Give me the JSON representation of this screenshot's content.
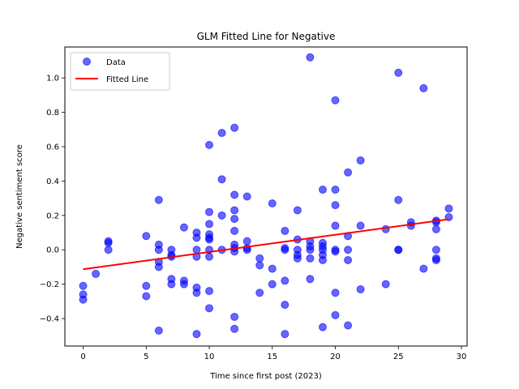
{
  "chart_data": {
    "type": "scatter",
    "title": "GLM Fitted Line for Negative",
    "xlabel": "Time since first post (2023)",
    "ylabel": "Negative sentiment score",
    "xlim": [
      -1.45,
      30.45
    ],
    "ylim": [
      -0.56,
      1.18
    ],
    "xticks": [
      0,
      5,
      10,
      15,
      20,
      25,
      30
    ],
    "yticks": [
      -0.4,
      -0.2,
      0.0,
      0.2,
      0.4,
      0.6,
      0.8,
      1.0
    ],
    "ytick_labels": [
      "−0.4",
      "−0.2",
      "0.0",
      "0.2",
      "0.4",
      "0.6",
      "0.8",
      "1.0"
    ],
    "grid": false,
    "legend_position": "top-left",
    "series": [
      {
        "name": "Data",
        "type": "scatter",
        "color": "#0000ff",
        "points": [
          [
            0,
            -0.21
          ],
          [
            0,
            -0.26
          ],
          [
            0,
            -0.29
          ],
          [
            1,
            -0.14
          ],
          [
            2,
            0.05
          ],
          [
            2,
            0.04
          ],
          [
            2,
            0.0
          ],
          [
            5,
            0.08
          ],
          [
            5,
            -0.21
          ],
          [
            5,
            -0.27
          ],
          [
            6,
            0.29
          ],
          [
            6,
            0.03
          ],
          [
            6,
            0.0
          ],
          [
            6,
            -0.07
          ],
          [
            6,
            -0.1
          ],
          [
            6,
            -0.47
          ],
          [
            7,
            0.0
          ],
          [
            7,
            -0.03
          ],
          [
            7,
            -0.04
          ],
          [
            7,
            -0.17
          ],
          [
            7,
            -0.2
          ],
          [
            8,
            0.13
          ],
          [
            8,
            -0.18
          ],
          [
            8,
            -0.2
          ],
          [
            9,
            0.1
          ],
          [
            9,
            0.07
          ],
          [
            9,
            0.0
          ],
          [
            9,
            -0.04
          ],
          [
            9,
            -0.22
          ],
          [
            9,
            -0.25
          ],
          [
            9,
            -0.49
          ],
          [
            10,
            0.61
          ],
          [
            10,
            0.22
          ],
          [
            10,
            0.15
          ],
          [
            10,
            0.09
          ],
          [
            10,
            0.07
          ],
          [
            10,
            0.06
          ],
          [
            10,
            0.0
          ],
          [
            10,
            -0.04
          ],
          [
            10,
            -0.24
          ],
          [
            10,
            -0.34
          ],
          [
            11,
            0.68
          ],
          [
            11,
            0.41
          ],
          [
            11,
            0.2
          ],
          [
            11,
            0.0
          ],
          [
            12,
            0.71
          ],
          [
            12,
            0.32
          ],
          [
            12,
            0.23
          ],
          [
            12,
            0.18
          ],
          [
            12,
            0.11
          ],
          [
            12,
            0.03
          ],
          [
            12,
            0.01
          ],
          [
            12,
            -0.01
          ],
          [
            12,
            -0.39
          ],
          [
            12,
            -0.46
          ],
          [
            13,
            0.31
          ],
          [
            13,
            0.05
          ],
          [
            13,
            0.01
          ],
          [
            13,
            0.0
          ],
          [
            14,
            -0.05
          ],
          [
            14,
            -0.09
          ],
          [
            14,
            -0.25
          ],
          [
            15,
            0.27
          ],
          [
            15,
            -0.11
          ],
          [
            15,
            -0.2
          ],
          [
            16,
            0.11
          ],
          [
            16,
            0.01
          ],
          [
            16,
            0.0
          ],
          [
            16,
            -0.18
          ],
          [
            16,
            -0.32
          ],
          [
            16,
            -0.49
          ],
          [
            17,
            0.23
          ],
          [
            17,
            0.06
          ],
          [
            17,
            0.0
          ],
          [
            17,
            -0.03
          ],
          [
            17,
            -0.05
          ],
          [
            18,
            1.12
          ],
          [
            18,
            0.05
          ],
          [
            18,
            0.02
          ],
          [
            18,
            0.0
          ],
          [
            18,
            -0.05
          ],
          [
            18,
            -0.17
          ],
          [
            19,
            0.35
          ],
          [
            19,
            0.04
          ],
          [
            19,
            0.02
          ],
          [
            19,
            0.0
          ],
          [
            19,
            -0.03
          ],
          [
            19,
            -0.06
          ],
          [
            19,
            -0.45
          ],
          [
            20,
            0.87
          ],
          [
            20,
            0.35
          ],
          [
            20,
            0.26
          ],
          [
            20,
            0.14
          ],
          [
            20,
            0.0
          ],
          [
            20,
            -0.01
          ],
          [
            20,
            -0.25
          ],
          [
            20,
            -0.38
          ],
          [
            21,
            0.45
          ],
          [
            21,
            0.08
          ],
          [
            21,
            0.0
          ],
          [
            21,
            -0.06
          ],
          [
            21,
            -0.44
          ],
          [
            22,
            0.52
          ],
          [
            22,
            0.14
          ],
          [
            22,
            -0.23
          ],
          [
            24,
            0.12
          ],
          [
            24,
            -0.2
          ],
          [
            25,
            1.03
          ],
          [
            25,
            0.29
          ],
          [
            25,
            0.0
          ],
          [
            25,
            0.0
          ],
          [
            26,
            0.16
          ],
          [
            26,
            0.14
          ],
          [
            27,
            0.94
          ],
          [
            27,
            -0.11
          ],
          [
            28,
            0.17
          ],
          [
            28,
            0.16
          ],
          [
            28,
            0.12
          ],
          [
            28,
            0.0
          ],
          [
            28,
            -0.05
          ],
          [
            28,
            -0.06
          ],
          [
            29,
            0.24
          ],
          [
            29,
            0.19
          ]
        ]
      },
      {
        "name": "Fitted Line",
        "type": "line",
        "color": "#ff0000",
        "points": [
          [
            0,
            -0.113
          ],
          [
            29,
            0.178
          ]
        ]
      }
    ]
  }
}
